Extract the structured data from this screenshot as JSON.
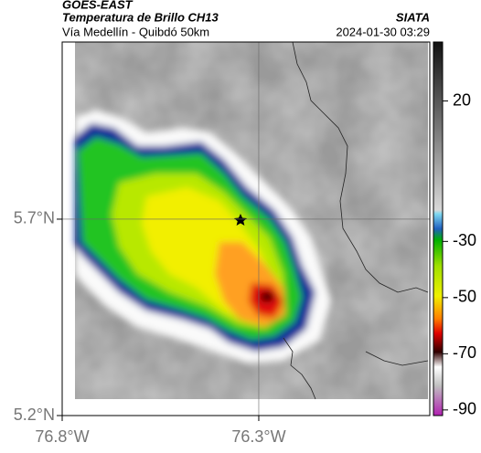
{
  "header": {
    "title": "GOES-EAST",
    "subtitle": "Temperatura de Brillo CH13",
    "source": "SIATA",
    "location": "Vía Medellín - Quibdó 50km",
    "datetime": "2024-01-30 03:29"
  },
  "map": {
    "xlim": [
      -76.8,
      -75.865
    ],
    "ylim": [
      5.2,
      6.151
    ],
    "xticks": [
      {
        "value": -76.8,
        "label": "76.8°W"
      },
      {
        "value": -76.3,
        "label": "76.3°W"
      }
    ],
    "yticks": [
      {
        "value": 5.2,
        "label": "5.2°N"
      },
      {
        "value": 5.7,
        "label": "5.7°N"
      }
    ],
    "grid": true
  },
  "colorbar": {
    "clim": [
      -92,
      41
    ],
    "ticks": [
      20,
      -30,
      -50,
      -70,
      -90
    ]
  }
}
